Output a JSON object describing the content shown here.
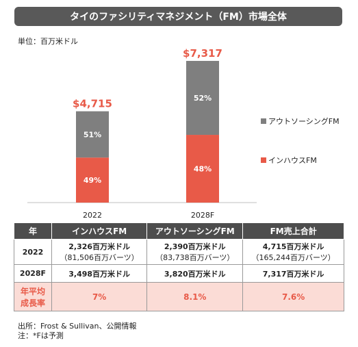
{
  "title": "タイのファシリティマネジメント（FM）市場全体",
  "unit": "単位：百万米ドル",
  "chart_data": {
    "type": "bar",
    "stacked": true,
    "categories": [
      "2022",
      "2028F"
    ],
    "totals": [
      "$4,715",
      "$7,317"
    ],
    "total_values": [
      4715,
      7317
    ],
    "series": [
      {
        "name": "インハウスFM",
        "values": [
          2326,
          3498
        ],
        "labels": [
          "49%",
          "48%"
        ],
        "color": "#e85a48"
      },
      {
        "name": "アウトソーシングFM",
        "values": [
          2390,
          3820
        ],
        "labels": [
          "51%",
          "52%"
        ],
        "color": "#7f7f7f"
      }
    ],
    "legend": [
      "アウトソーシングFM",
      "インハウスFM"
    ],
    "legend_position": "right"
  },
  "table": {
    "headers": [
      "年",
      "インハウスFM",
      "アウトソーシングFM",
      "FM売上合計"
    ],
    "rows": [
      {
        "year": "2022",
        "c1": "2,326百万米ドル",
        "c1s": "（81,506百万バーツ）",
        "c2": "2,390百万米ドル",
        "c2s": "（83,738百万バーツ）",
        "c3": "4,715百万米ドル",
        "c3s": "（165,244百万バーツ）"
      },
      {
        "year": "2028F",
        "c1": "3,498百万米ドル",
        "c2": "3,820百万米ドル",
        "c3": "7,317百万米ドル"
      }
    ],
    "cagr": {
      "label_line1": "年平均",
      "label_line2": "成長率",
      "c1": "7%",
      "c2": "8.1%",
      "c3": "7.6%"
    }
  },
  "notes": {
    "line1": "出所：Frost & Sullivan、公開情報",
    "line2": "注：*Fは予測"
  }
}
